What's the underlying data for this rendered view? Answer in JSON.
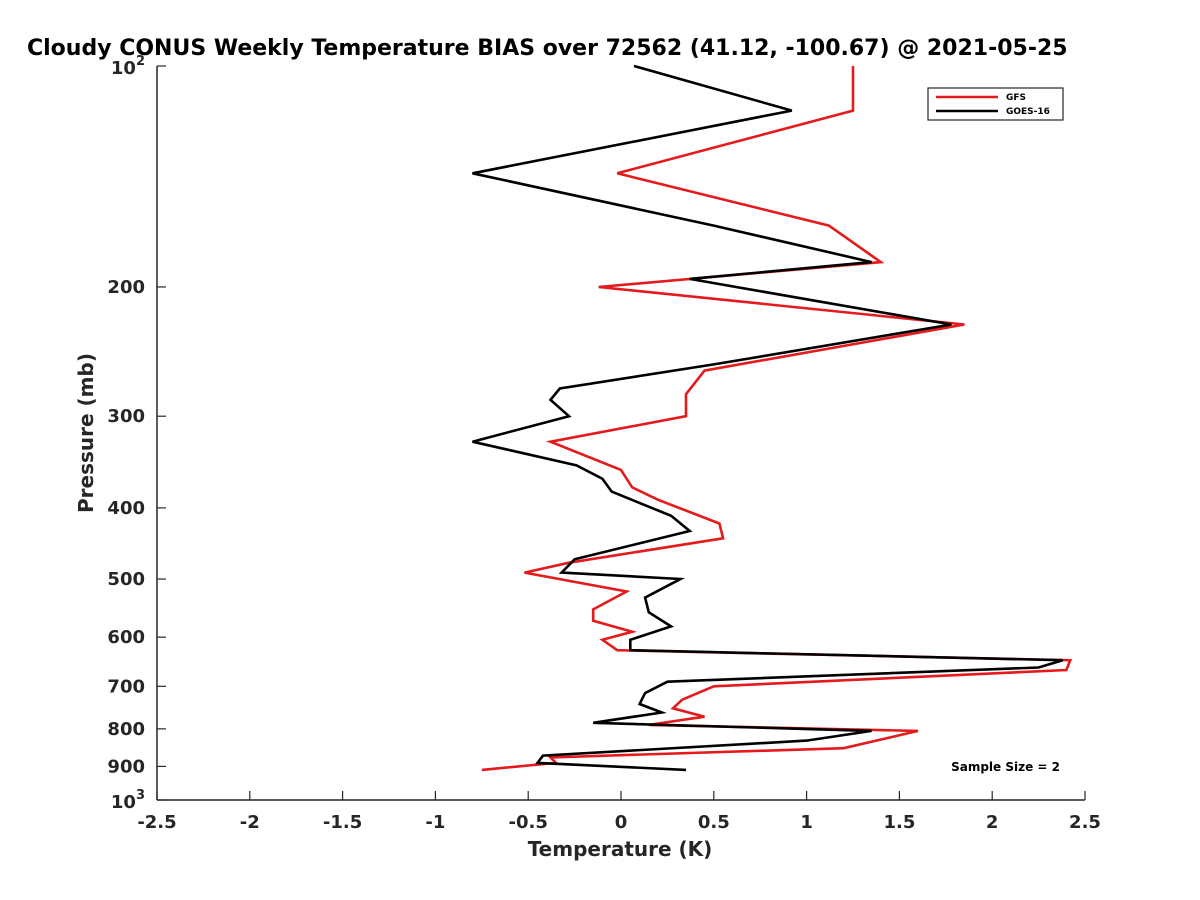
{
  "chart_data": {
    "type": "line",
    "title": "Cloudy CONUS Weekly Temperature BIAS over 72562 (41.12, -100.67) @ 2021-05-25",
    "xlabel": "Temperature (K)",
    "ylabel": "Pressure (mb)",
    "xlim": [
      -2.5,
      2.5
    ],
    "ylim": [
      100,
      1000
    ],
    "y_scale": "log",
    "y_reversed": true,
    "grid": false,
    "legend_position": "top-right",
    "x_ticks": [
      "-2.5",
      "-2",
      "-1.5",
      "-1",
      "-0.5",
      "0",
      "0.5",
      "1",
      "1.5",
      "2",
      "2.5"
    ],
    "y_ticks": [
      {
        "value": 100,
        "base": "10",
        "exp": "2"
      },
      {
        "value": 200,
        "label": "200"
      },
      {
        "value": 300,
        "label": "300"
      },
      {
        "value": 400,
        "label": "400"
      },
      {
        "value": 500,
        "label": "500"
      },
      {
        "value": 600,
        "label": "600"
      },
      {
        "value": 700,
        "label": "700"
      },
      {
        "value": 800,
        "label": "800"
      },
      {
        "value": 900,
        "label": "900"
      },
      {
        "value": 1000,
        "base": "10",
        "exp": "3"
      }
    ],
    "annotation": "Sample Size = 2",
    "series": [
      {
        "name": "GFS",
        "color": "#e41a1c",
        "points": [
          [
            1.25,
            100
          ],
          [
            1.25,
            115
          ],
          [
            -0.02,
            140
          ],
          [
            1.12,
            165
          ],
          [
            1.4,
            185
          ],
          [
            -0.12,
            200
          ],
          [
            1.85,
            225
          ],
          [
            0.45,
            260
          ],
          [
            0.35,
            280
          ],
          [
            0.35,
            300
          ],
          [
            -0.38,
            325
          ],
          [
            0.0,
            355
          ],
          [
            0.06,
            375
          ],
          [
            0.2,
            390
          ],
          [
            0.53,
            420
          ],
          [
            0.55,
            440
          ],
          [
            -0.28,
            475
          ],
          [
            -0.52,
            490
          ],
          [
            0.03,
            520
          ],
          [
            -0.15,
            550
          ],
          [
            -0.15,
            570
          ],
          [
            0.06,
            590
          ],
          [
            -0.1,
            605
          ],
          [
            -0.02,
            625
          ],
          [
            2.42,
            645
          ],
          [
            2.4,
            665
          ],
          [
            0.5,
            700
          ],
          [
            0.33,
            730
          ],
          [
            0.28,
            750
          ],
          [
            0.45,
            770
          ],
          [
            0.15,
            790
          ],
          [
            1.6,
            805
          ],
          [
            1.2,
            850
          ],
          [
            -0.38,
            875
          ],
          [
            -0.35,
            890
          ],
          [
            -0.75,
            910
          ]
        ]
      },
      {
        "name": "GOES-16",
        "color": "#000000",
        "points": [
          [
            0.07,
            100
          ],
          [
            0.92,
            115
          ],
          [
            -0.8,
            140
          ],
          [
            0.5,
            165
          ],
          [
            1.35,
            185
          ],
          [
            0.37,
            195
          ],
          [
            1.78,
            225
          ],
          [
            0.5,
            255
          ],
          [
            -0.33,
            275
          ],
          [
            -0.38,
            285
          ],
          [
            -0.28,
            300
          ],
          [
            -0.8,
            325
          ],
          [
            -0.24,
            350
          ],
          [
            -0.1,
            365
          ],
          [
            -0.05,
            380
          ],
          [
            0.27,
            410
          ],
          [
            0.37,
            430
          ],
          [
            -0.25,
            470
          ],
          [
            -0.32,
            490
          ],
          [
            0.32,
            500
          ],
          [
            0.13,
            530
          ],
          [
            0.15,
            555
          ],
          [
            0.27,
            580
          ],
          [
            0.05,
            605
          ],
          [
            0.05,
            625
          ],
          [
            2.38,
            645
          ],
          [
            2.25,
            660
          ],
          [
            0.25,
            690
          ],
          [
            0.13,
            715
          ],
          [
            0.1,
            740
          ],
          [
            0.22,
            760
          ],
          [
            -0.15,
            785
          ],
          [
            1.35,
            805
          ],
          [
            1.0,
            830
          ],
          [
            -0.42,
            870
          ],
          [
            -0.45,
            890
          ],
          [
            0.35,
            910
          ]
        ]
      }
    ]
  }
}
